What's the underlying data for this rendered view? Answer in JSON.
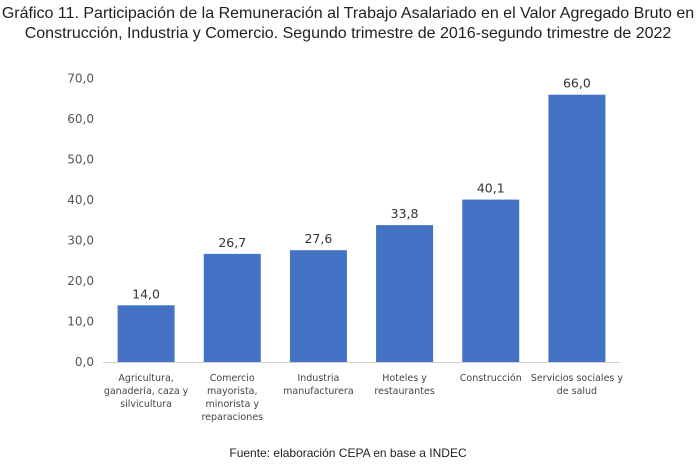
{
  "title_lines": [
    "Gráfico 11. Participación de la Remuneración al Trabajo Asalariado en el Valor Agregado Bruto en",
    "Construcción, Industria y Comercio. Segundo trimestre de 2016-segundo trimestre de 2022"
  ],
  "source": "Fuente: elaboración CEPA en base a INDEC",
  "chart_data": {
    "type": "bar",
    "categories": [
      [
        "Agricultura,",
        "ganadería, caza y",
        "silvicultura"
      ],
      [
        "Comercio",
        "mayorista,",
        "minorista y",
        "reparaciones"
      ],
      [
        "Industria",
        "manufacturera"
      ],
      [
        "Hoteles y",
        "restaurantes"
      ],
      [
        "Construcción"
      ],
      [
        "Servicios sociales y",
        "de salud"
      ]
    ],
    "values": [
      14.0,
      26.7,
      27.6,
      33.8,
      40.1,
      66.0
    ],
    "data_labels": [
      "14,0",
      "26,7",
      "27,6",
      "33,8",
      "40,1",
      "66,0"
    ],
    "yticks": [
      0,
      10,
      20,
      30,
      40,
      50,
      60,
      70
    ],
    "ytick_labels": [
      "0,0",
      "10,0",
      "20,0",
      "30,0",
      "40,0",
      "50,0",
      "60,0",
      "70,0"
    ],
    "ylim": [
      0,
      70
    ],
    "bar_color": "#4472C4",
    "grid": false,
    "legend": "none"
  }
}
